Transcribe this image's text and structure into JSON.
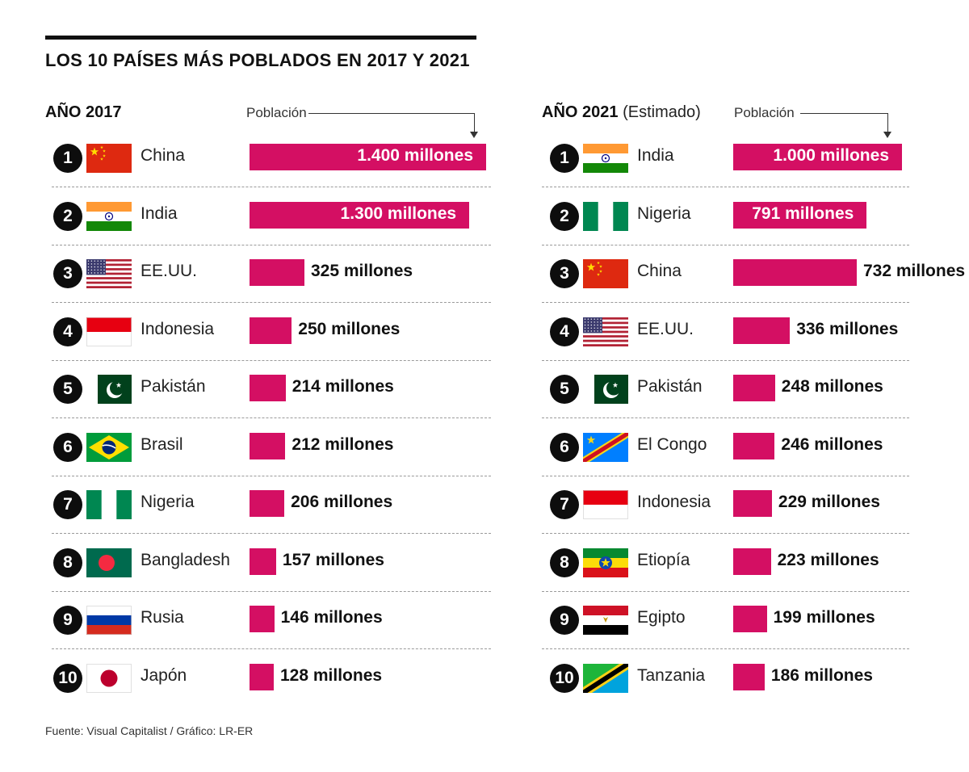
{
  "title": "LOS 10 PAÍSES MÁS POBLADOS EN 2017 Y 2021",
  "source": "Fuente: Visual Capitalist / Gráfico: LR-ER",
  "chart_data": [
    {
      "type": "bar",
      "title": "AÑO 2017",
      "subtitle": "",
      "axis_label": "Población",
      "unit": "millones",
      "categories": [
        "China",
        "India",
        "EE.UU.",
        "Indonesia",
        "Pakistán",
        "Brasil",
        "Nigeria",
        "Bangladesh",
        "Rusia",
        "Japón"
      ],
      "ranks": [
        "1",
        "2",
        "3",
        "4",
        "5",
        "6",
        "7",
        "8",
        "9",
        "10"
      ],
      "values": [
        1400,
        1300,
        325,
        250,
        214,
        212,
        206,
        157,
        146,
        128
      ],
      "labels": [
        "1.400 millones",
        "1.300 millones",
        "325 millones",
        "250 millones",
        "214 millones",
        "212 millones",
        "206 millones",
        "157 millones",
        "146 millones",
        "128 millones"
      ],
      "flags": [
        "china",
        "india",
        "usa",
        "indonesia",
        "pakistan",
        "brazil",
        "nigeria",
        "bangladesh",
        "russia",
        "japan"
      ]
    },
    {
      "type": "bar",
      "title": "AÑO 2021",
      "subtitle": "(Estimado)",
      "axis_label": "Población",
      "unit": "millones",
      "categories": [
        "India",
        "Nigeria",
        "China",
        "EE.UU.",
        "Pakistán",
        "El Congo",
        "Indonesia",
        "Etiopía",
        "Egipto",
        "Tanzania"
      ],
      "ranks": [
        "1",
        "2",
        "3",
        "4",
        "5",
        "6",
        "7",
        "8",
        "9",
        "10"
      ],
      "values": [
        1000,
        791,
        732,
        336,
        248,
        246,
        229,
        223,
        199,
        186
      ],
      "labels": [
        "1.000 millones",
        "791 millones",
        "732 millones",
        "336 millones",
        "248 millones",
        "246 millones",
        "229 millones",
        "223 millones",
        "199 millones",
        "186 millones"
      ],
      "flags": [
        "india",
        "nigeria",
        "china",
        "usa",
        "pakistan",
        "congo",
        "indonesia",
        "ethiopia",
        "egypt",
        "tanzania"
      ]
    }
  ],
  "colors": {
    "bar": "#d40f63",
    "badge": "#0d0d0d"
  }
}
